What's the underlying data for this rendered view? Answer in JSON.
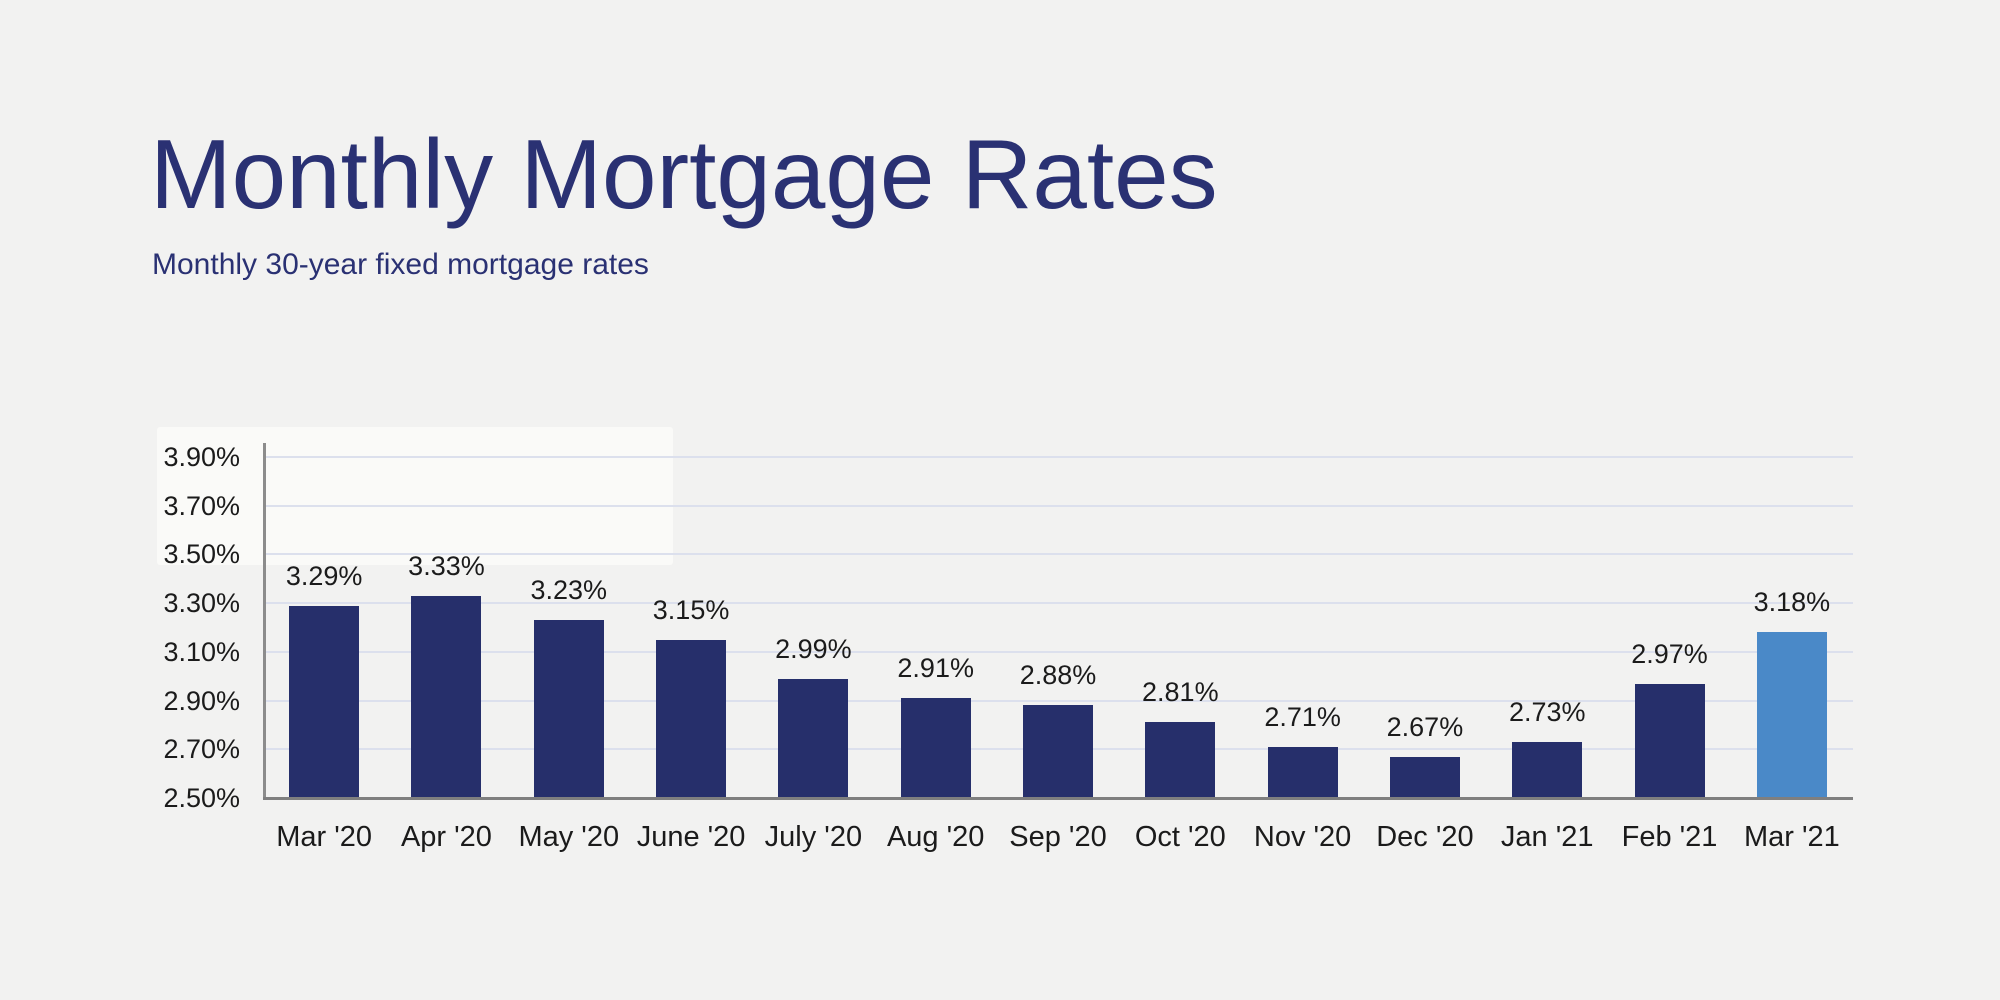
{
  "page": {
    "background_color": "#f2f2f1"
  },
  "header": {
    "title": "Monthly Mortgage Rates",
    "subtitle": "Monthly 30-year fixed mortgage rates",
    "text_color": "#2a3173"
  },
  "chart_data": {
    "type": "bar",
    "title": "Monthly Mortgage Rates",
    "subtitle": "Monthly 30-year fixed mortgage rates",
    "categories": [
      "Mar '20",
      "Apr '20",
      "May '20",
      "June '20",
      "July '20",
      "Aug '20",
      "Sep '20",
      "Oct '20",
      "Nov '20",
      "Dec '20",
      "Jan '21",
      "Feb '21",
      "Mar '21"
    ],
    "values": [
      3.29,
      3.33,
      3.23,
      3.15,
      2.99,
      2.91,
      2.88,
      2.81,
      2.71,
      2.67,
      2.73,
      2.97,
      3.18
    ],
    "value_labels": [
      "3.29%",
      "3.33%",
      "3.23%",
      "3.15%",
      "2.99%",
      "2.91%",
      "2.88%",
      "2.81%",
      "2.71%",
      "2.67%",
      "2.73%",
      "2.97%",
      "3.18%"
    ],
    "highlighted_index": 12,
    "y_ticks": [
      {
        "label": "3.90%",
        "value": 3.9
      },
      {
        "label": "3.70%",
        "value": 3.7
      },
      {
        "label": "3.50%",
        "value": 3.5
      },
      {
        "label": "3.30%",
        "value": 3.3
      },
      {
        "label": "3.10%",
        "value": 3.1
      },
      {
        "label": "2.90%",
        "value": 2.9
      },
      {
        "label": "2.70%",
        "value": 2.7
      },
      {
        "label": "2.50%",
        "value": 2.5
      }
    ],
    "ylim": [
      2.5,
      3.9
    ],
    "xlabel": "",
    "ylabel": "",
    "grid": true,
    "legend": false,
    "bar_color": "#262f6b",
    "highlight_bar_color": "#4a89c8",
    "gridline_color": "#dce0ed",
    "axis_color": "#8c8c8c",
    "baseline_color": "#7f7f7f",
    "tick_label_color": "#1b1b1b"
  }
}
